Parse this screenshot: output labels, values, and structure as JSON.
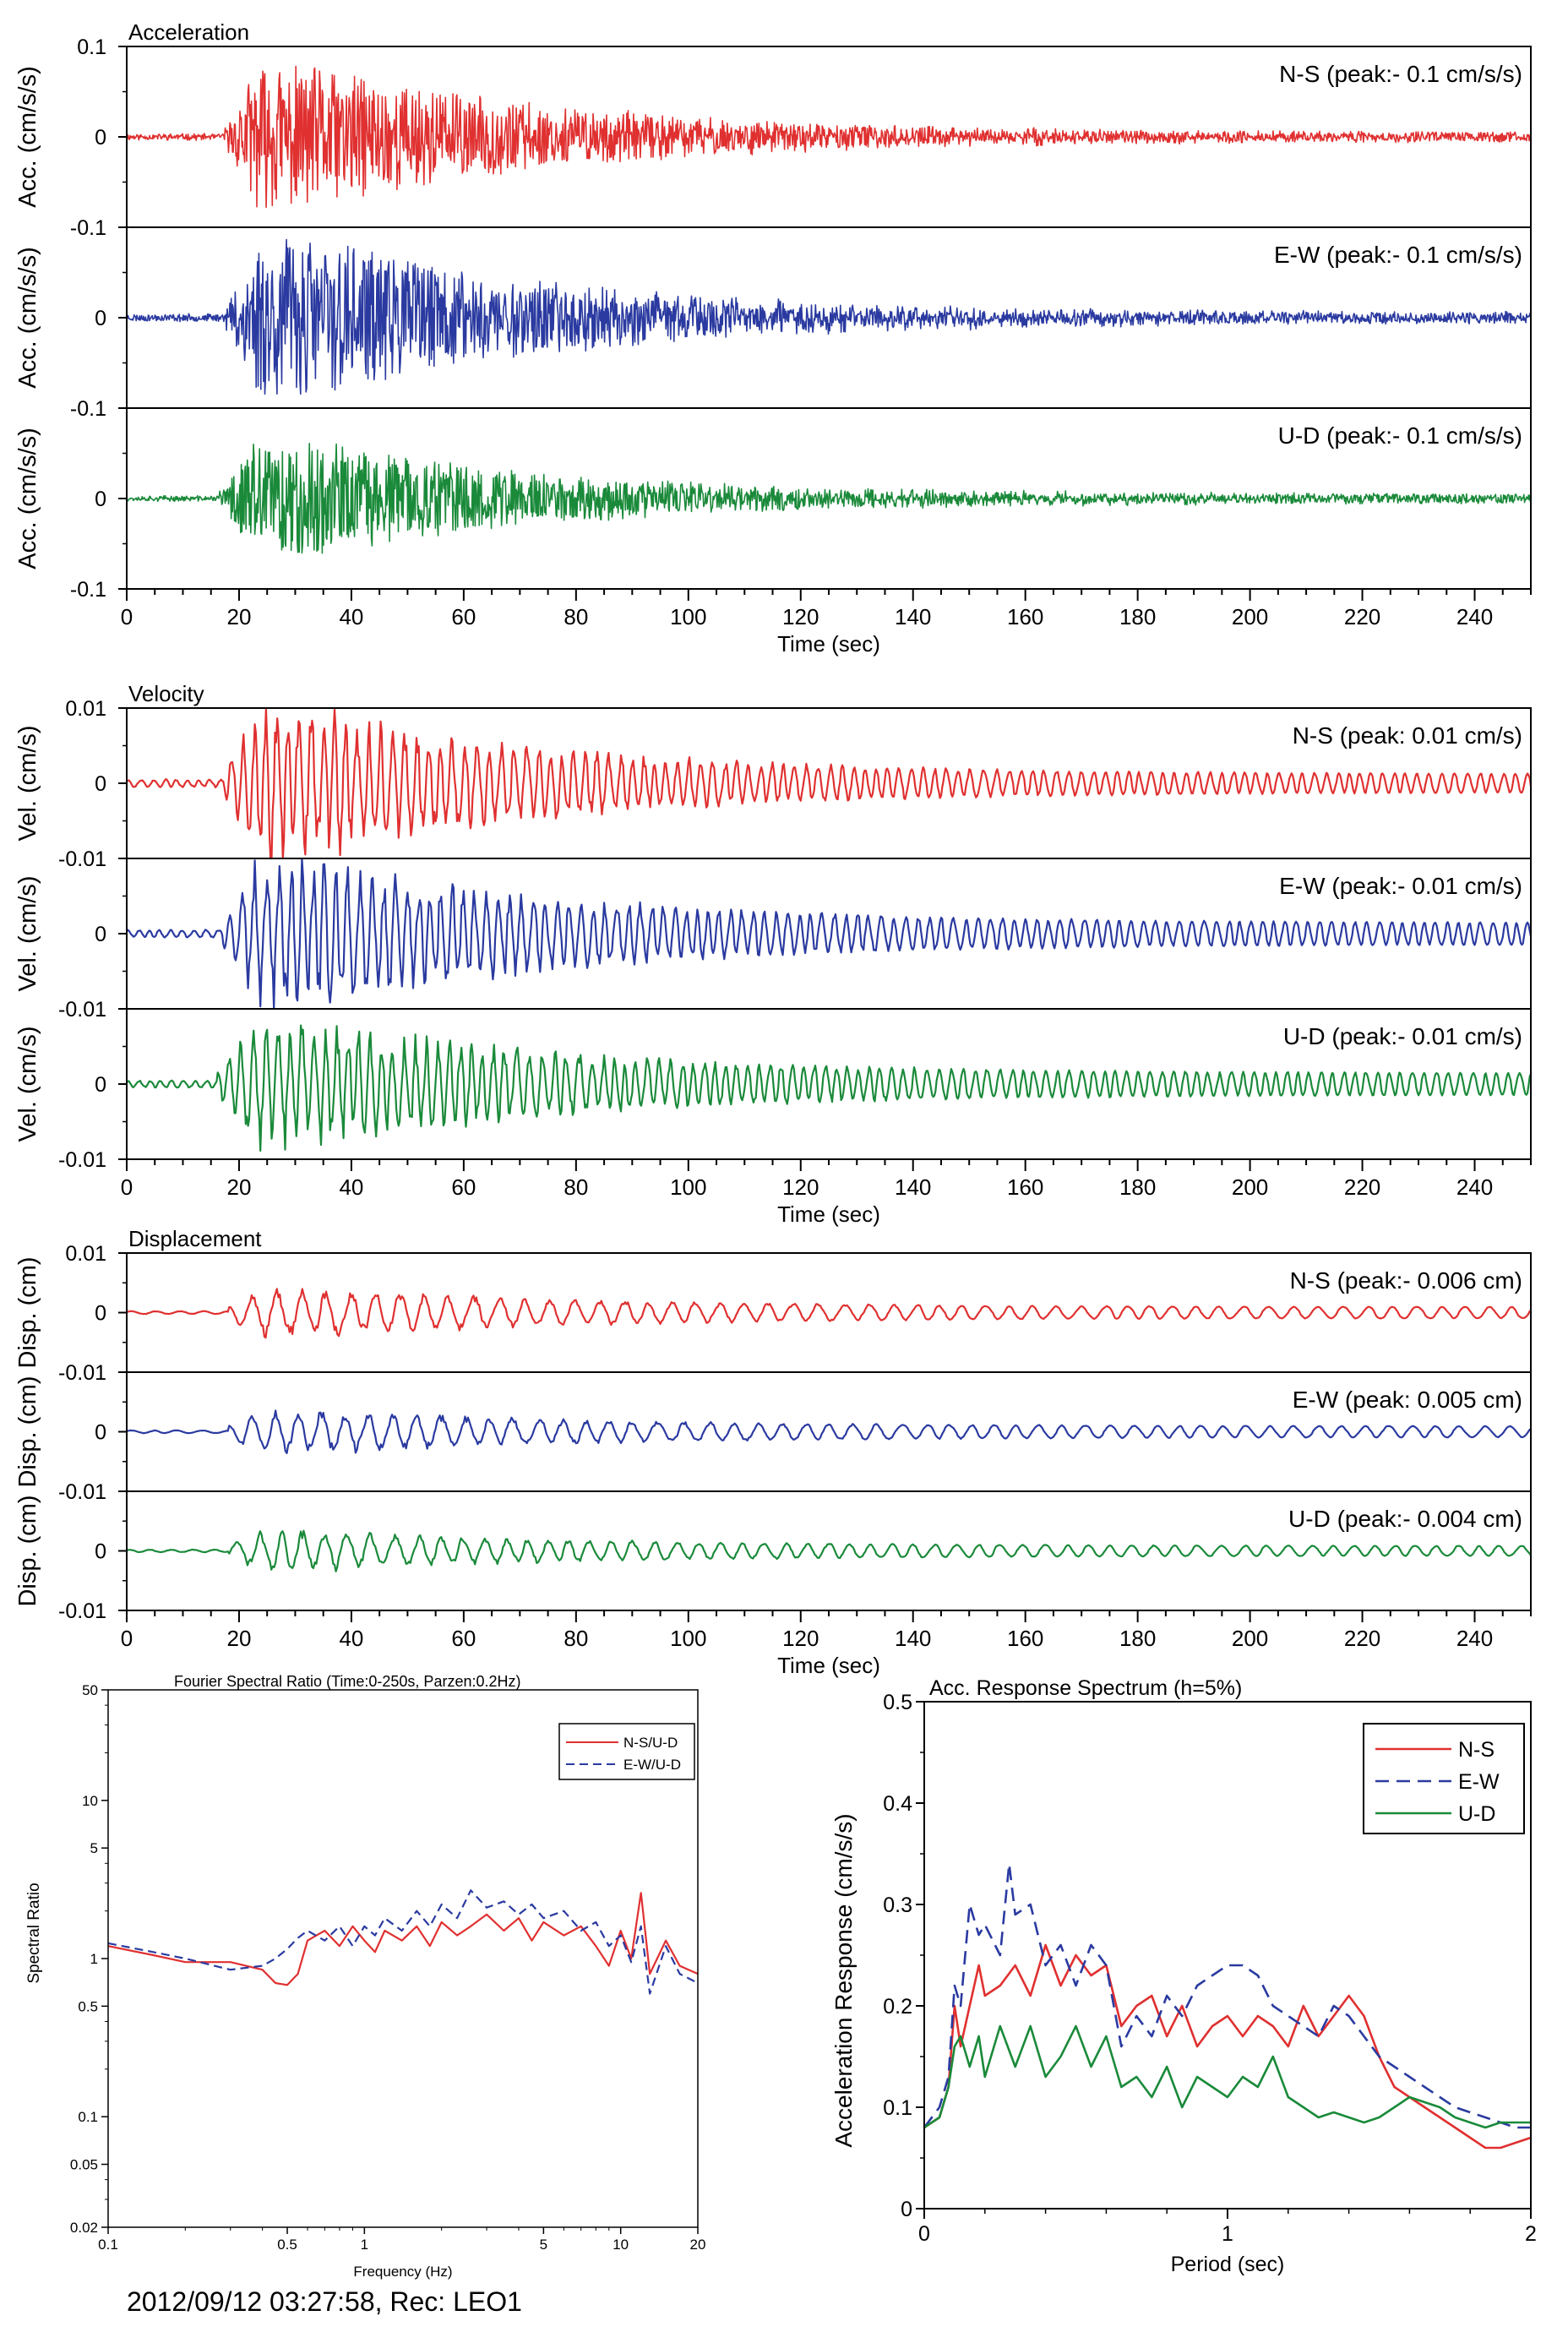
{
  "footer": "2012/09/12 03:27:58, Rec: LEO1",
  "colors": {
    "ns": "#e03030",
    "ew": "#2a3aa0",
    "ud": "#1a8a3a",
    "axis": "#000000"
  },
  "chart_data": [
    {
      "type": "line",
      "title": "Acceleration",
      "xlabel": "Time (sec)",
      "xlim": [
        0,
        250
      ],
      "xticks": [
        0,
        20,
        40,
        60,
        80,
        100,
        120,
        140,
        160,
        180,
        200,
        220,
        240
      ],
      "panels": [
        {
          "name": "N-S",
          "color": "#e03030",
          "annotation": "N-S (peak:- 0.1 cm/s/s)",
          "ylabel": "Acc. (cm/s/s)",
          "ylim": [
            -0.1,
            0.1
          ],
          "yticks": [
            "0.1",
            "0",
            "-0.1"
          ],
          "peak": -0.1,
          "onset": 17,
          "decay": 115,
          "amp_max": 0.075,
          "tail_amp": 0.005,
          "period": 0.7,
          "seed": 11
        },
        {
          "name": "E-W",
          "color": "#2a3aa0",
          "annotation": "E-W (peak:- 0.1 cm/s/s)",
          "ylabel": "Acc. (cm/s/s)",
          "ylim": [
            -0.1,
            0.1
          ],
          "yticks": [
            "",
            "0",
            "-0.1"
          ],
          "peak": -0.1,
          "onset": 17,
          "decay": 115,
          "amp_max": 0.085,
          "tail_amp": 0.006,
          "period": 0.7,
          "seed": 23
        },
        {
          "name": "U-D",
          "color": "#1a8a3a",
          "annotation": "U-D (peak:- 0.1 cm/s/s)",
          "ylabel": "Acc. (cm/s/s)",
          "ylim": [
            -0.1,
            0.1
          ],
          "yticks": [
            "",
            "0",
            "-0.1"
          ],
          "peak": -0.1,
          "onset": 16,
          "decay": 115,
          "amp_max": 0.06,
          "tail_amp": 0.005,
          "period": 0.7,
          "seed": 37
        }
      ]
    },
    {
      "type": "line",
      "title": "Velocity",
      "xlabel": "Time (sec)",
      "xlim": [
        0,
        250
      ],
      "xticks": [
        0,
        20,
        40,
        60,
        80,
        100,
        120,
        140,
        160,
        180,
        200,
        220,
        240
      ],
      "panels": [
        {
          "name": "N-S",
          "color": "#e03030",
          "annotation": "N-S (peak: 0.01 cm/s)",
          "ylabel": "Vel. (cm/s)",
          "ylim": [
            -0.01,
            0.01
          ],
          "yticks": [
            "0.01",
            "0",
            "-0.01"
          ],
          "peak": 0.01,
          "onset": 17,
          "decay": 110,
          "amp_max": 0.0095,
          "tail_amp": 0.0012,
          "period": 2.2,
          "seed": 41
        },
        {
          "name": "E-W",
          "color": "#2a3aa0",
          "annotation": "E-W (peak:- 0.01 cm/s)",
          "ylabel": "Vel. (cm/s)",
          "ylim": [
            -0.01,
            0.01
          ],
          "yticks": [
            "",
            "0",
            "-0.01"
          ],
          "peak": -0.01,
          "onset": 17,
          "decay": 115,
          "amp_max": 0.009,
          "tail_amp": 0.0014,
          "period": 2.2,
          "seed": 53
        },
        {
          "name": "U-D",
          "color": "#1a8a3a",
          "annotation": "U-D (peak:- 0.01 cm/s)",
          "ylabel": "Vel. (cm/s)",
          "ylim": [
            -0.01,
            0.01
          ],
          "yticks": [
            "",
            "0",
            "-0.01"
          ],
          "peak": -0.01,
          "onset": 16,
          "decay": 115,
          "amp_max": 0.0075,
          "tail_amp": 0.0014,
          "period": 2.2,
          "seed": 67
        }
      ]
    },
    {
      "type": "line",
      "title": "Displacement",
      "xlabel": "Time (sec)",
      "xlim": [
        0,
        250
      ],
      "xticks": [
        0,
        20,
        40,
        60,
        80,
        100,
        120,
        140,
        160,
        180,
        200,
        220,
        240
      ],
      "panels": [
        {
          "name": "N-S",
          "color": "#e03030",
          "annotation": "N-S (peak:- 0.006 cm)",
          "ylabel": "Disp. (cm)",
          "ylim": [
            -0.01,
            0.01
          ],
          "yticks": [
            "0.01",
            "0",
            "-0.01"
          ],
          "peak": -0.006,
          "onset": 18,
          "decay": 120,
          "amp_max": 0.0035,
          "tail_amp": 0.0009,
          "period": 4.5,
          "seed": 71
        },
        {
          "name": "E-W",
          "color": "#2a3aa0",
          "annotation": "E-W (peak: 0.005 cm)",
          "ylabel": "Disp. (cm)",
          "ylim": [
            -0.01,
            0.01
          ],
          "yticks": [
            "",
            "0",
            "-0.01"
          ],
          "peak": 0.005,
          "onset": 18,
          "decay": 120,
          "amp_max": 0.003,
          "tail_amp": 0.0009,
          "period": 4.5,
          "seed": 83
        },
        {
          "name": "U-D",
          "color": "#1a8a3a",
          "annotation": "U-D (peak:- 0.004 cm)",
          "ylabel": "Disp. (cm)",
          "ylim": [
            -0.01,
            0.01
          ],
          "yticks": [
            "",
            "0",
            "-0.01"
          ],
          "peak": -0.004,
          "onset": 18,
          "decay": 120,
          "amp_max": 0.0028,
          "tail_amp": 0.0008,
          "period": 4.0,
          "seed": 97
        }
      ]
    },
    {
      "type": "line",
      "title": "Fourier Spectral Ratio (Time:0-250s, Parzen:0.2Hz)",
      "xlabel": "Frequency (Hz)",
      "ylabel": "Spectral Ratio",
      "xscale": "log",
      "yscale": "log",
      "xlim": [
        0.1,
        20
      ],
      "ylim": [
        0.02,
        50
      ],
      "xticks": [
        "0.1",
        "0.5",
        "1",
        "5",
        "10",
        "20"
      ],
      "yticks": [
        "50",
        "10",
        "5",
        "1",
        "0.5",
        "0.1",
        "0.05",
        "0.02"
      ],
      "legend": "top-right",
      "series": [
        {
          "name": "N-S/U-D",
          "color": "#e03030",
          "style": "solid",
          "x": [
            0.1,
            0.15,
            0.2,
            0.3,
            0.4,
            0.45,
            0.5,
            0.55,
            0.6,
            0.7,
            0.8,
            0.9,
            1.0,
            1.1,
            1.2,
            1.4,
            1.6,
            1.8,
            2.0,
            2.3,
            2.6,
            3.0,
            3.5,
            4.0,
            4.5,
            5.0,
            6.0,
            7.0,
            8.0,
            9.0,
            10.0,
            11.0,
            12.0,
            13.0,
            15.0,
            17.0,
            20.0
          ],
          "y": [
            1.2,
            1.05,
            0.95,
            0.95,
            0.85,
            0.7,
            0.68,
            0.8,
            1.3,
            1.5,
            1.2,
            1.6,
            1.3,
            1.1,
            1.5,
            1.3,
            1.6,
            1.2,
            1.7,
            1.4,
            1.6,
            1.9,
            1.5,
            1.8,
            1.3,
            1.7,
            1.4,
            1.6,
            1.2,
            0.9,
            1.5,
            1.0,
            2.6,
            0.8,
            1.3,
            0.9,
            0.8
          ]
        },
        {
          "name": "E-W/U-D",
          "color": "#2a3aa0",
          "style": "dashed",
          "x": [
            0.1,
            0.15,
            0.2,
            0.3,
            0.4,
            0.45,
            0.5,
            0.55,
            0.6,
            0.7,
            0.8,
            0.9,
            1.0,
            1.1,
            1.2,
            1.4,
            1.6,
            1.8,
            2.0,
            2.3,
            2.6,
            3.0,
            3.5,
            4.0,
            4.5,
            5.0,
            6.0,
            7.0,
            8.0,
            9.0,
            10.0,
            11.0,
            12.0,
            13.0,
            15.0,
            17.0,
            20.0
          ],
          "y": [
            1.25,
            1.1,
            1.0,
            0.85,
            0.9,
            1.0,
            1.15,
            1.35,
            1.5,
            1.3,
            1.6,
            1.2,
            1.6,
            1.4,
            1.8,
            1.5,
            2.0,
            1.6,
            2.2,
            1.8,
            2.7,
            2.1,
            2.3,
            1.9,
            2.2,
            1.8,
            2.0,
            1.5,
            1.7,
            1.2,
            1.4,
            0.95,
            1.6,
            0.6,
            1.2,
            0.8,
            0.7
          ]
        }
      ]
    },
    {
      "type": "line",
      "title": "Acc. Response Spectrum (h=5%)",
      "xlabel": "Period (sec)",
      "ylabel": "Acceleration Response (cm/s/s)",
      "xlim": [
        0,
        2
      ],
      "ylim": [
        0,
        0.5
      ],
      "xticks": [
        "0",
        "1",
        "2"
      ],
      "yticks": [
        "0.5",
        "0.4",
        "0.3",
        "0.2",
        "0.1",
        "0"
      ],
      "legend": "top-right",
      "series": [
        {
          "name": "N-S",
          "color": "#e03030",
          "style": "solid",
          "x": [
            0.0,
            0.05,
            0.08,
            0.1,
            0.12,
            0.15,
            0.18,
            0.2,
            0.25,
            0.3,
            0.35,
            0.4,
            0.45,
            0.5,
            0.55,
            0.6,
            0.65,
            0.7,
            0.75,
            0.8,
            0.85,
            0.9,
            0.95,
            1.0,
            1.05,
            1.1,
            1.15,
            1.2,
            1.25,
            1.3,
            1.35,
            1.4,
            1.45,
            1.5,
            1.55,
            1.6,
            1.65,
            1.7,
            1.75,
            1.8,
            1.85,
            1.9,
            1.95,
            2.0
          ],
          "y": [
            0.08,
            0.09,
            0.12,
            0.2,
            0.16,
            0.2,
            0.24,
            0.21,
            0.22,
            0.24,
            0.21,
            0.26,
            0.22,
            0.25,
            0.23,
            0.24,
            0.18,
            0.2,
            0.21,
            0.17,
            0.2,
            0.16,
            0.18,
            0.19,
            0.17,
            0.19,
            0.18,
            0.16,
            0.2,
            0.17,
            0.19,
            0.21,
            0.19,
            0.15,
            0.12,
            0.11,
            0.1,
            0.09,
            0.08,
            0.07,
            0.06,
            0.06,
            0.065,
            0.07
          ]
        },
        {
          "name": "E-W",
          "color": "#2a3aa0",
          "style": "dashed",
          "x": [
            0.0,
            0.05,
            0.08,
            0.1,
            0.12,
            0.15,
            0.18,
            0.2,
            0.25,
            0.28,
            0.3,
            0.35,
            0.4,
            0.45,
            0.5,
            0.55,
            0.6,
            0.65,
            0.7,
            0.75,
            0.8,
            0.85,
            0.9,
            0.95,
            1.0,
            1.05,
            1.1,
            1.15,
            1.2,
            1.25,
            1.3,
            1.35,
            1.4,
            1.45,
            1.5,
            1.55,
            1.6,
            1.65,
            1.7,
            1.75,
            1.8,
            1.85,
            1.9,
            1.95,
            2.0
          ],
          "y": [
            0.08,
            0.1,
            0.13,
            0.22,
            0.2,
            0.3,
            0.27,
            0.28,
            0.25,
            0.34,
            0.29,
            0.3,
            0.24,
            0.26,
            0.22,
            0.26,
            0.24,
            0.16,
            0.19,
            0.17,
            0.21,
            0.19,
            0.22,
            0.23,
            0.24,
            0.24,
            0.23,
            0.2,
            0.19,
            0.18,
            0.17,
            0.2,
            0.19,
            0.17,
            0.15,
            0.14,
            0.13,
            0.12,
            0.11,
            0.1,
            0.095,
            0.09,
            0.085,
            0.08,
            0.08
          ]
        },
        {
          "name": "U-D",
          "color": "#1a8a3a",
          "style": "solid",
          "x": [
            0.0,
            0.05,
            0.08,
            0.1,
            0.12,
            0.15,
            0.18,
            0.2,
            0.25,
            0.3,
            0.35,
            0.4,
            0.45,
            0.5,
            0.55,
            0.6,
            0.65,
            0.7,
            0.75,
            0.8,
            0.85,
            0.9,
            0.95,
            1.0,
            1.05,
            1.1,
            1.15,
            1.2,
            1.25,
            1.3,
            1.35,
            1.4,
            1.45,
            1.5,
            1.55,
            1.6,
            1.65,
            1.7,
            1.75,
            1.8,
            1.85,
            1.9,
            1.95,
            2.0
          ],
          "y": [
            0.08,
            0.09,
            0.12,
            0.16,
            0.17,
            0.14,
            0.17,
            0.13,
            0.18,
            0.14,
            0.18,
            0.13,
            0.15,
            0.18,
            0.14,
            0.17,
            0.12,
            0.13,
            0.11,
            0.14,
            0.1,
            0.13,
            0.12,
            0.11,
            0.13,
            0.12,
            0.15,
            0.11,
            0.1,
            0.09,
            0.095,
            0.09,
            0.085,
            0.09,
            0.1,
            0.11,
            0.105,
            0.1,
            0.09,
            0.085,
            0.08,
            0.085,
            0.085,
            0.085
          ]
        }
      ]
    }
  ]
}
